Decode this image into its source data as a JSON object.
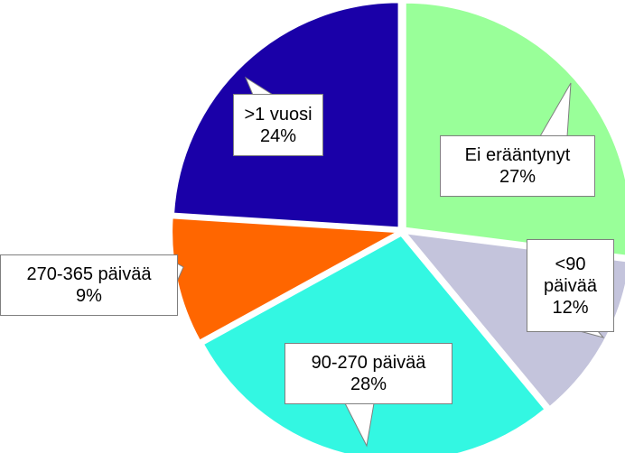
{
  "chart_data": {
    "type": "pie",
    "categories": [
      "Ei erääntynyt",
      "<90 päivää",
      "90-270 päivää",
      "270-365 päivää",
      ">1 vuosi"
    ],
    "values": [
      27,
      12,
      28,
      9,
      24
    ],
    "value_labels": [
      "27%",
      "12%",
      "28%",
      "9%",
      "24%"
    ],
    "colors": [
      "#99ff99",
      "#c4c4dc",
      "#33f7e2",
      "#ff6600",
      "#1a00a8"
    ]
  }
}
